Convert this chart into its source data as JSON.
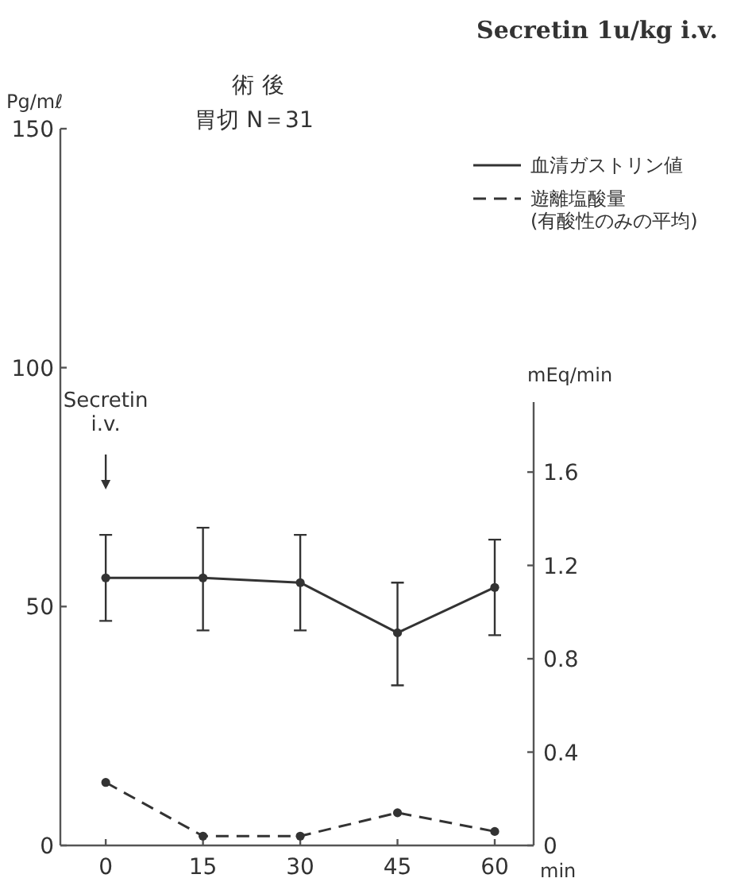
{
  "chart_data": {
    "type": "line",
    "title": "Secretin 1u/kg i.v.",
    "subtitle": "術後",
    "ylabel": "Pg/mℓ",
    "y2label": "mEq/min",
    "xlabel": "min",
    "x": [
      0,
      15,
      30,
      45,
      60
    ],
    "xlim": [
      -7,
      66
    ],
    "xticks": [
      0,
      15,
      30,
      45,
      60
    ],
    "ylim": [
      0,
      150
    ],
    "yticks": [
      0,
      50,
      100,
      150
    ],
    "y2lim": [
      0,
      1.9
    ],
    "y2ticks": [
      0,
      0.4,
      0.8,
      1.2,
      1.6
    ],
    "series": [
      {
        "name": "血清ガストリン値",
        "color": "#333333",
        "line_style": "solid",
        "values": [
          56,
          56,
          55,
          44.5,
          54
        ],
        "errors": [
          [
            47,
            65
          ],
          [
            45,
            66.5
          ],
          [
            45,
            65
          ],
          [
            33.5,
            55
          ],
          [
            44,
            64
          ]
        ]
      },
      {
        "name": "遊離塩酸量\n(有酸性のみの平均)",
        "color": "#333333",
        "line_style": "dashed",
        "axis": "y2",
        "values": [
          0.27,
          0.04,
          0.04,
          0.14,
          0.06
        ]
      }
    ],
    "annotations": [
      "胃切 N＝31",
      "Secretin\ni.v."
    ],
    "marker": "circle",
    "legend": "top right",
    "grid": false
  }
}
